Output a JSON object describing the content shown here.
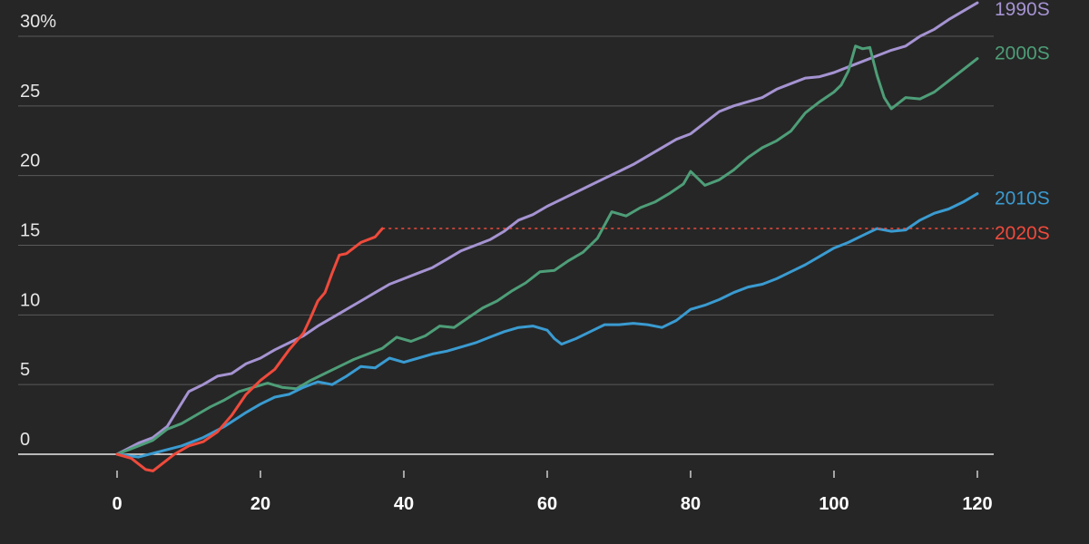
{
  "chart_data": {
    "type": "line",
    "title": "",
    "xlabel": "",
    "ylabel": "",
    "xlim": [
      -10,
      122
    ],
    "ylim": [
      0,
      32.5
    ],
    "x_ticks": [
      "0",
      "20",
      "40",
      "60",
      "80",
      "100",
      "120"
    ],
    "x_tick_values": [
      0,
      20,
      40,
      60,
      80,
      100,
      120
    ],
    "y_ticks": [
      "0",
      "5",
      "10",
      "15",
      "20",
      "25",
      "30%"
    ],
    "y_tick_values": [
      0,
      5,
      10,
      15,
      20,
      25,
      30
    ],
    "grid": "horizontal",
    "series": [
      {
        "name": "1990S",
        "color": "#a593d2",
        "points": [
          [
            0,
            0
          ],
          [
            3,
            0.8
          ],
          [
            5,
            1.2
          ],
          [
            7,
            2.0
          ],
          [
            10,
            4.5
          ],
          [
            12,
            5.0
          ],
          [
            14,
            5.6
          ],
          [
            16,
            5.8
          ],
          [
            18,
            6.5
          ],
          [
            20,
            6.9
          ],
          [
            22,
            7.5
          ],
          [
            24,
            8.0
          ],
          [
            26,
            8.5
          ],
          [
            28,
            9.2
          ],
          [
            30,
            9.8
          ],
          [
            32,
            10.4
          ],
          [
            34,
            11.0
          ],
          [
            36,
            11.6
          ],
          [
            38,
            12.2
          ],
          [
            40,
            12.6
          ],
          [
            42,
            13.0
          ],
          [
            44,
            13.4
          ],
          [
            46,
            14.0
          ],
          [
            48,
            14.6
          ],
          [
            50,
            15.0
          ],
          [
            52,
            15.4
          ],
          [
            54,
            16.0
          ],
          [
            56,
            16.8
          ],
          [
            58,
            17.2
          ],
          [
            60,
            17.8
          ],
          [
            62,
            18.3
          ],
          [
            64,
            18.8
          ],
          [
            66,
            19.3
          ],
          [
            68,
            19.8
          ],
          [
            70,
            20.3
          ],
          [
            72,
            20.8
          ],
          [
            74,
            21.4
          ],
          [
            76,
            22.0
          ],
          [
            78,
            22.6
          ],
          [
            80,
            23.0
          ],
          [
            82,
            23.8
          ],
          [
            84,
            24.6
          ],
          [
            86,
            25.0
          ],
          [
            88,
            25.3
          ],
          [
            90,
            25.6
          ],
          [
            92,
            26.2
          ],
          [
            94,
            26.6
          ],
          [
            96,
            27.0
          ],
          [
            98,
            27.1
          ],
          [
            100,
            27.4
          ],
          [
            102,
            27.8
          ],
          [
            104,
            28.2
          ],
          [
            106,
            28.6
          ],
          [
            108,
            29.0
          ],
          [
            110,
            29.3
          ],
          [
            112,
            30.0
          ],
          [
            114,
            30.5
          ],
          [
            116,
            31.2
          ],
          [
            118,
            31.8
          ],
          [
            120,
            32.4
          ]
        ]
      },
      {
        "name": "2000S",
        "color": "#4e9e78",
        "points": [
          [
            0,
            0
          ],
          [
            3,
            0.6
          ],
          [
            5,
            1.0
          ],
          [
            7,
            1.8
          ],
          [
            9,
            2.2
          ],
          [
            11,
            2.8
          ],
          [
            13,
            3.4
          ],
          [
            15,
            3.9
          ],
          [
            17,
            4.5
          ],
          [
            19,
            4.8
          ],
          [
            21,
            5.1
          ],
          [
            23,
            4.8
          ],
          [
            25,
            4.7
          ],
          [
            27,
            5.3
          ],
          [
            29,
            5.8
          ],
          [
            31,
            6.3
          ],
          [
            33,
            6.8
          ],
          [
            35,
            7.2
          ],
          [
            37,
            7.6
          ],
          [
            39,
            8.4
          ],
          [
            41,
            8.1
          ],
          [
            43,
            8.5
          ],
          [
            45,
            9.2
          ],
          [
            47,
            9.1
          ],
          [
            49,
            9.8
          ],
          [
            51,
            10.5
          ],
          [
            53,
            11.0
          ],
          [
            55,
            11.7
          ],
          [
            57,
            12.3
          ],
          [
            59,
            13.1
          ],
          [
            61,
            13.2
          ],
          [
            63,
            13.9
          ],
          [
            65,
            14.5
          ],
          [
            67,
            15.5
          ],
          [
            69,
            17.4
          ],
          [
            71,
            17.1
          ],
          [
            73,
            17.7
          ],
          [
            75,
            18.1
          ],
          [
            77,
            18.7
          ],
          [
            79,
            19.4
          ],
          [
            80,
            20.3
          ],
          [
            82,
            19.3
          ],
          [
            84,
            19.7
          ],
          [
            86,
            20.4
          ],
          [
            88,
            21.3
          ],
          [
            90,
            22.0
          ],
          [
            92,
            22.5
          ],
          [
            94,
            23.2
          ],
          [
            96,
            24.5
          ],
          [
            98,
            25.3
          ],
          [
            100,
            26.0
          ],
          [
            101,
            26.5
          ],
          [
            102,
            27.5
          ],
          [
            103,
            29.3
          ],
          [
            104,
            29.1
          ],
          [
            105,
            29.2
          ],
          [
            106,
            27.2
          ],
          [
            107,
            25.6
          ],
          [
            108,
            24.8
          ],
          [
            110,
            25.6
          ],
          [
            112,
            25.5
          ],
          [
            114,
            26.0
          ],
          [
            116,
            26.8
          ],
          [
            118,
            27.6
          ],
          [
            120,
            28.4
          ]
        ]
      },
      {
        "name": "2010S",
        "color": "#3a9bd1",
        "points": [
          [
            0,
            0
          ],
          [
            3,
            -0.2
          ],
          [
            6,
            0.2
          ],
          [
            9,
            0.6
          ],
          [
            12,
            1.2
          ],
          [
            15,
            2.0
          ],
          [
            18,
            3.0
          ],
          [
            20,
            3.6
          ],
          [
            22,
            4.1
          ],
          [
            24,
            4.3
          ],
          [
            26,
            4.8
          ],
          [
            28,
            5.2
          ],
          [
            30,
            5.0
          ],
          [
            32,
            5.6
          ],
          [
            34,
            6.3
          ],
          [
            36,
            6.2
          ],
          [
            38,
            6.9
          ],
          [
            40,
            6.6
          ],
          [
            42,
            6.9
          ],
          [
            44,
            7.2
          ],
          [
            46,
            7.4
          ],
          [
            48,
            7.7
          ],
          [
            50,
            8.0
          ],
          [
            52,
            8.4
          ],
          [
            54,
            8.8
          ],
          [
            56,
            9.1
          ],
          [
            58,
            9.2
          ],
          [
            60,
            8.9
          ],
          [
            61,
            8.3
          ],
          [
            62,
            7.9
          ],
          [
            64,
            8.3
          ],
          [
            66,
            8.8
          ],
          [
            68,
            9.3
          ],
          [
            70,
            9.3
          ],
          [
            72,
            9.4
          ],
          [
            74,
            9.3
          ],
          [
            76,
            9.1
          ],
          [
            78,
            9.6
          ],
          [
            80,
            10.4
          ],
          [
            82,
            10.7
          ],
          [
            84,
            11.1
          ],
          [
            86,
            11.6
          ],
          [
            88,
            12.0
          ],
          [
            90,
            12.2
          ],
          [
            92,
            12.6
          ],
          [
            94,
            13.1
          ],
          [
            96,
            13.6
          ],
          [
            98,
            14.2
          ],
          [
            100,
            14.8
          ],
          [
            102,
            15.2
          ],
          [
            104,
            15.7
          ],
          [
            106,
            16.2
          ],
          [
            108,
            16.0
          ],
          [
            110,
            16.1
          ],
          [
            112,
            16.8
          ],
          [
            114,
            17.3
          ],
          [
            116,
            17.6
          ],
          [
            118,
            18.1
          ],
          [
            120,
            18.7
          ]
        ]
      },
      {
        "name": "2020S",
        "color": "#ef4a3c",
        "points": [
          [
            0,
            0
          ],
          [
            2,
            -0.3
          ],
          [
            4,
            -1.1
          ],
          [
            5,
            -1.2
          ],
          [
            6,
            -0.8
          ],
          [
            8,
            0.0
          ],
          [
            10,
            0.6
          ],
          [
            12,
            0.9
          ],
          [
            14,
            1.6
          ],
          [
            16,
            2.8
          ],
          [
            18,
            4.3
          ],
          [
            20,
            5.3
          ],
          [
            22,
            6.1
          ],
          [
            24,
            7.5
          ],
          [
            26,
            8.7
          ],
          [
            27,
            9.8
          ],
          [
            28,
            11.0
          ],
          [
            29,
            11.6
          ],
          [
            30,
            13.0
          ],
          [
            31,
            14.3
          ],
          [
            32,
            14.4
          ],
          [
            34,
            15.2
          ],
          [
            36,
            15.6
          ],
          [
            37,
            16.2
          ]
        ],
        "projection": 16.2
      }
    ]
  }
}
